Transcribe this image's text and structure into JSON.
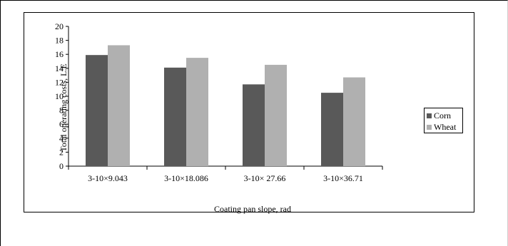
{
  "chart_data": {
    "type": "bar",
    "title": "",
    "xlabel": "Coating pan slope, rad",
    "ylabel": "Total  operating costs, L.E",
    "categories": [
      "3-10×9.043",
      "3-10×18.086",
      "3-10× 27.66",
      "3-10×36.71"
    ],
    "series": [
      {
        "name": "Corn",
        "color": "#595959",
        "values": [
          15.9,
          14.1,
          11.7,
          10.5
        ]
      },
      {
        "name": "Wheat",
        "color": "#b0b0b0",
        "values": [
          17.3,
          15.5,
          14.5,
          12.7
        ]
      }
    ],
    "ylim": [
      0,
      20
    ],
    "yticks": [
      "0",
      "2",
      "4",
      "6",
      "8",
      "10",
      "12",
      "14",
      "16",
      "18",
      "20"
    ],
    "grid": false,
    "legend_position": "right"
  }
}
